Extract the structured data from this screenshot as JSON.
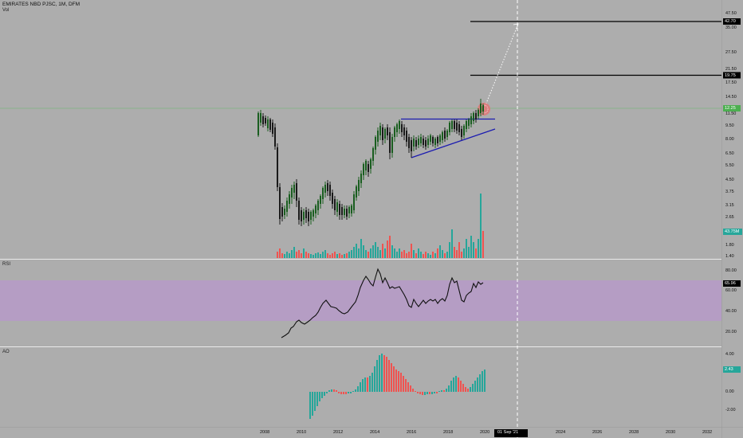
{
  "header": {
    "title": "EMIRATES NBD PJSC, 1M, DFM",
    "volume_label": "Vol"
  },
  "panes": {
    "rsi_label": "RSI",
    "ao_label": "AO"
  },
  "price_axis": {
    "ticks": [
      "47.50",
      "42.70",
      "35.00",
      "27.50",
      "21.50",
      "19.75",
      "17.50",
      "14.50",
      "12.25",
      "11.50",
      "9.50",
      "8.00",
      "6.50",
      "5.50",
      "4.50",
      "3.75",
      "3.15",
      "2.65",
      "1.80",
      "1.40"
    ],
    "current_price": "12.25",
    "target_1": "42.70",
    "target_2": "19.75",
    "volume_badge": "43.75M"
  },
  "rsi_axis": {
    "ticks": [
      "80.00",
      "65.96",
      "60.00",
      "40.00",
      "20.00"
    ],
    "current": "65.96"
  },
  "ao_axis": {
    "ticks": [
      "4.00",
      "2.43",
      "0.00",
      "-2.00"
    ],
    "current": "2.43"
  },
  "time_axis": {
    "labels": [
      "2008",
      "2010",
      "2012",
      "2014",
      "2016",
      "2018",
      "2020",
      "2024",
      "2026",
      "2028",
      "2030",
      "2032"
    ],
    "cursor_label": "01 Sep '21"
  },
  "colors": {
    "background": "#adadad",
    "up": "#26a69a",
    "down": "#ef5350",
    "rsi_band": "#b69bc6",
    "trendline": "#1b1bb0",
    "target_line": "#000000",
    "price_line": "#66bb6a"
  }
}
